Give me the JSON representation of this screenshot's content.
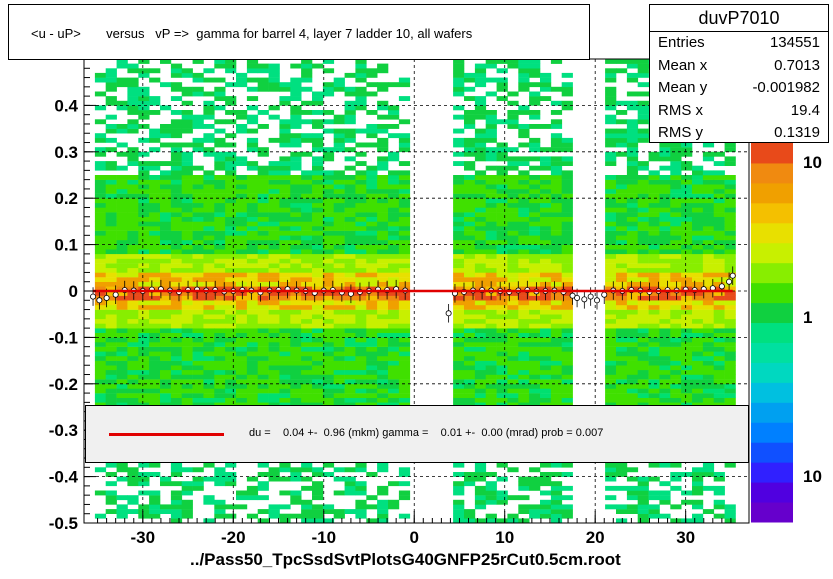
{
  "chart_data": {
    "type": "heatmap",
    "title": "<u - uP>       versus   vP =>  gamma for barrel 4, layer 7 ladder 10, all wafers",
    "xlabel": "",
    "ylabel": "",
    "xlim": [
      -36.5,
      37
    ],
    "ylim": [
      -0.5,
      0.5
    ],
    "x_ticks": [
      -30,
      -20,
      -10,
      0,
      10,
      20,
      30
    ],
    "y_ticks": [
      -0.5,
      -0.4,
      -0.3,
      -0.2,
      -0.1,
      0,
      0.1,
      0.2,
      0.3,
      0.4
    ],
    "y_tick_labels": [
      "-0.5",
      "-0.4",
      "-0.3",
      "-0.2",
      "-0.1",
      "0",
      "0.1",
      "0.2",
      "0.3",
      "0.4"
    ],
    "x_tick_labels": [
      "-30",
      "-20",
      "-10",
      "0",
      "10",
      "20",
      "30"
    ],
    "occupied_x_ranges": [
      [
        -35.5,
        0
      ],
      [
        4,
        17.5
      ],
      [
        21.5,
        35.5
      ]
    ],
    "colorbar": {
      "scale": "log",
      "labels": [
        "10",
        "1",
        "10"
      ]
    },
    "stats": {
      "name": "duvP7010",
      "rows": [
        {
          "label": "Entries",
          "value": "134551"
        },
        {
          "label": "Mean x",
          "value": "0.7013"
        },
        {
          "label": "Mean y",
          "value": "-0.001982"
        },
        {
          "label": "RMS x",
          "value": "19.4"
        },
        {
          "label": "RMS y",
          "value": "0.1319"
        }
      ]
    },
    "fit": {
      "text": "du =    0.04 +-  0.96 (mkm) gamma =    0.01 +-  0.00 (mrad) prob = 0.007",
      "color": "#e00000",
      "y_value": 0.0
    },
    "profile_points": [
      [
        -35.5,
        -0.012
      ],
      [
        -34.8,
        -0.02
      ],
      [
        -34,
        -0.015
      ],
      [
        -33,
        -0.008
      ],
      [
        -32,
        0.002
      ],
      [
        -31,
        0.001
      ],
      [
        -30,
        0.0
      ],
      [
        -29,
        0.003
      ],
      [
        -28,
        0.004
      ],
      [
        -27,
        0.001
      ],
      [
        -26,
        -0.002
      ],
      [
        -25,
        0.002
      ],
      [
        -24,
        0.003
      ],
      [
        -23,
        0.001
      ],
      [
        -22,
        0.002
      ],
      [
        -21,
        -0.001
      ],
      [
        -20,
        0.0
      ],
      [
        -19,
        0.002
      ],
      [
        -18,
        0.001
      ],
      [
        -17,
        -0.003
      ],
      [
        -16,
        0.001
      ],
      [
        -15,
        0.002
      ],
      [
        -14,
        0.004
      ],
      [
        -13,
        0.001
      ],
      [
        -12,
        0.0
      ],
      [
        -11,
        -0.004
      ],
      [
        -10,
        0.001
      ],
      [
        -9,
        0.002
      ],
      [
        -8,
        -0.003
      ],
      [
        -7,
        -0.006
      ],
      [
        -6,
        -0.002
      ],
      [
        -5,
        0.0
      ],
      [
        -4,
        0.003
      ],
      [
        -3,
        0.002
      ],
      [
        -2,
        0.004
      ],
      [
        -1,
        0.001
      ],
      [
        3.8,
        -0.048
      ],
      [
        4.5,
        -0.005
      ],
      [
        5.5,
        -0.002
      ],
      [
        6.5,
        0.001
      ],
      [
        7.5,
        0.002
      ],
      [
        8.5,
        0.001
      ],
      [
        9.5,
        0.0
      ],
      [
        10.5,
        -0.002
      ],
      [
        11.5,
        0.001
      ],
      [
        12.5,
        0.002
      ],
      [
        13.5,
        -0.001
      ],
      [
        14.5,
        0.0
      ],
      [
        15.5,
        0.001
      ],
      [
        16.5,
        -0.002
      ],
      [
        17.5,
        -0.01
      ],
      [
        18,
        -0.015
      ],
      [
        18.8,
        -0.018
      ],
      [
        19.5,
        -0.012
      ],
      [
        20.2,
        -0.02
      ],
      [
        21,
        -0.008
      ],
      [
        22,
        0.001
      ],
      [
        23,
        0.0
      ],
      [
        24,
        0.002
      ],
      [
        25,
        0.001
      ],
      [
        26,
        -0.002
      ],
      [
        27,
        0.0
      ],
      [
        28,
        0.002
      ],
      [
        29,
        0.001
      ],
      [
        30,
        0.003
      ],
      [
        31,
        0.002
      ],
      [
        32,
        0.004
      ],
      [
        33,
        0.006
      ],
      [
        34,
        0.01
      ],
      [
        34.8,
        0.02
      ],
      [
        35.2,
        0.033
      ]
    ]
  },
  "footer": "../Pass50_TpcSsdSvtPlotsG40GNFP25rCut0.5cm.root",
  "colors": {
    "red_line": "#e00000"
  }
}
